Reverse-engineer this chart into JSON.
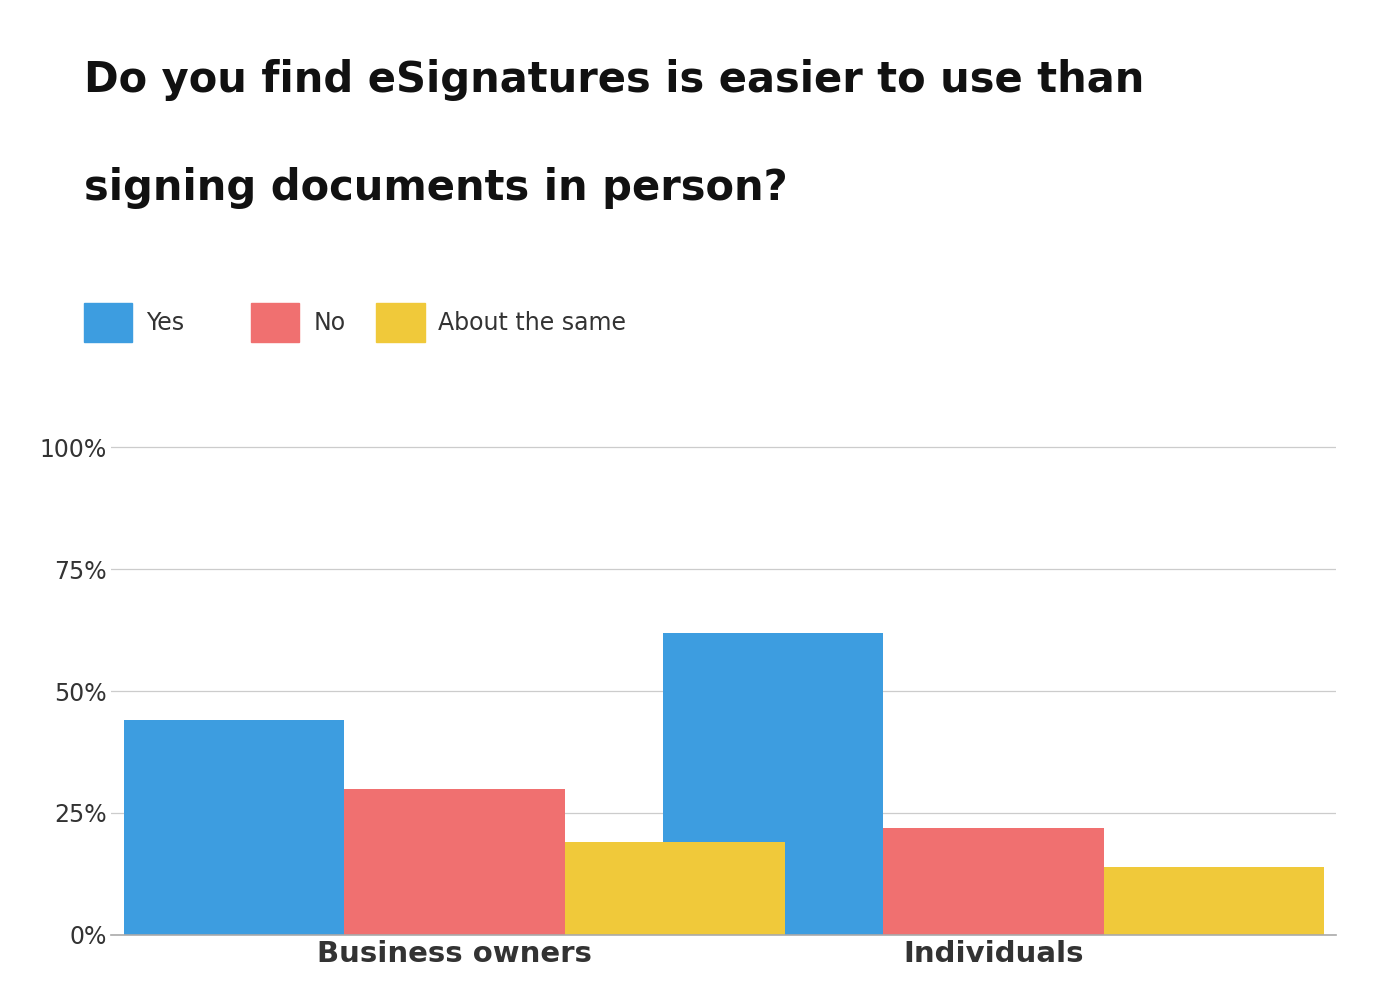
{
  "title_line1": "Do you find eSignatures is easier to use than",
  "title_line2": "signing documents in person?",
  "categories": [
    "Business owners",
    "Individuals"
  ],
  "series": [
    {
      "label": "Yes",
      "values": [
        44,
        62
      ],
      "color": "#3d9de0"
    },
    {
      "label": "No",
      "values": [
        30,
        22
      ],
      "color": "#f07070"
    },
    {
      "label": "About the same",
      "values": [
        19,
        14
      ],
      "color": "#f0c93a"
    }
  ],
  "yticks": [
    0,
    25,
    50,
    75,
    100
  ],
  "ytick_labels": [
    "0%",
    "25%",
    "50%",
    "75%",
    "100%"
  ],
  "ylim": [
    0,
    105
  ],
  "background_color": "#ffffff",
  "title_fontsize": 30,
  "title_fontweight": "bold",
  "legend_fontsize": 17,
  "tick_fontsize": 17,
  "xlabel_fontsize": 21,
  "bar_width": 0.18,
  "group_positions": [
    0.28,
    0.72
  ]
}
